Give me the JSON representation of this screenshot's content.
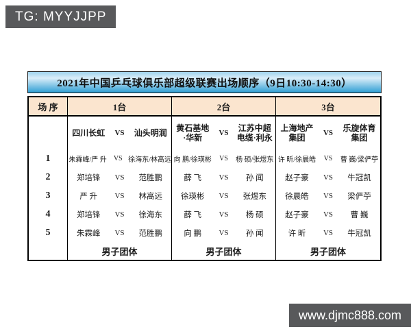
{
  "badges": {
    "tg": "TG: MYYJJPP",
    "website": "www.djmc888.com"
  },
  "colors": {
    "badge_bg": "#58595b",
    "title_gradient_top": "#9fd2ec",
    "title_gradient_bottom": "#2f9fd4",
    "header_row_bg": "#fbe5cf",
    "border": "#000000",
    "text": "#1b1b1b"
  },
  "table": {
    "title": "2021年中国乒乓球俱乐部超级联赛出场顺序（9日10:30-14:30）",
    "vs_label": "VS",
    "headers": {
      "order": "场 序",
      "t1": "1台",
      "t2": "2台",
      "t3": "3台"
    },
    "teams": {
      "t1": {
        "left1": "四川长虹",
        "left2": "",
        "right1": "汕头明润",
        "right2": ""
      },
      "t2": {
        "left1": "黄石基地",
        "left2": "·华新",
        "right1": "江苏中超",
        "right2": "电缆·利永"
      },
      "t3": {
        "left1": "上海地产",
        "left2": "集团",
        "right1": "乐旋体育",
        "right2": "集团"
      }
    },
    "rows": [
      {
        "no": "1",
        "t1l": "朱霖峰/严 升",
        "t1r": "徐海东/林高远",
        "t2l": "向 鹏/徐瑛彬",
        "t2r": "杨 硕/张煜东",
        "t3l": "许 昕/徐晨皓",
        "t3r": "曹 巍/梁俨苧"
      },
      {
        "no": "2",
        "t1l": "郑培锋",
        "t1r": "范胜鹏",
        "t2l": "薛 飞",
        "t2r": "孙 闻",
        "t3l": "赵子豪",
        "t3r": "牛冠凯"
      },
      {
        "no": "3",
        "t1l": "严 升",
        "t1r": "林高远",
        "t2l": "徐瑛彬",
        "t2r": "张煜东",
        "t3l": "徐晨皓",
        "t3r": "梁俨苧"
      },
      {
        "no": "4",
        "t1l": "郑培锋",
        "t1r": "徐海东",
        "t2l": "薛 飞",
        "t2r": "杨 硕",
        "t3l": "赵子豪",
        "t3r": "曹 巍"
      },
      {
        "no": "5",
        "t1l": "朱霖峰",
        "t1r": "范胜鹏",
        "t2l": "向 鹏",
        "t2r": "孙 闻",
        "t3l": "许 昕",
        "t3r": "牛冠凯"
      }
    ],
    "footer": {
      "t1": "男子团体",
      "t2": "男子团体",
      "t3": "男子团体"
    }
  }
}
